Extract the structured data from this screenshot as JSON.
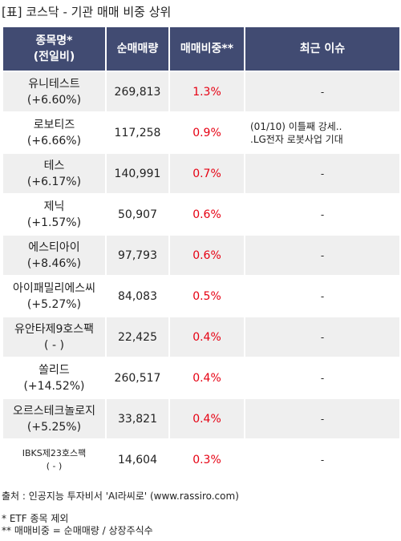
{
  "title": "[표] 코스닥 - 기관 매매 비중 상위",
  "headers": {
    "name_line1": "종목명*",
    "name_line2": "(전일비)",
    "net_volume": "순매매량",
    "ratio": "매매비중**",
    "issue": "최근 이슈"
  },
  "rows": [
    {
      "name": "유니테스트",
      "change": "(+6.60%)",
      "volume": "269,813",
      "ratio": "1.3%",
      "issue_line1": "-",
      "issue_line2": ""
    },
    {
      "name": "로보티즈",
      "change": "(+6.66%)",
      "volume": "117,258",
      "ratio": "0.9%",
      "issue_line1": "(01/10) 이틀째 강세..",
      "issue_line2": ".LG전자 로봇사업 기대"
    },
    {
      "name": "테스",
      "change": "(+6.17%)",
      "volume": "140,991",
      "ratio": "0.7%",
      "issue_line1": "-",
      "issue_line2": ""
    },
    {
      "name": "제닉",
      "change": "(+1.57%)",
      "volume": "50,907",
      "ratio": "0.6%",
      "issue_line1": "-",
      "issue_line2": ""
    },
    {
      "name": "에스티아이",
      "change": "(+8.46%)",
      "volume": "97,793",
      "ratio": "0.6%",
      "issue_line1": "-",
      "issue_line2": ""
    },
    {
      "name": "아이패밀리에스씨",
      "change": "(+5.27%)",
      "volume": "84,083",
      "ratio": "0.5%",
      "issue_line1": "-",
      "issue_line2": ""
    },
    {
      "name": "유안타제9호스팩",
      "change": "( - )",
      "volume": "22,425",
      "ratio": "0.4%",
      "issue_line1": "-",
      "issue_line2": ""
    },
    {
      "name": "쏠리드",
      "change": "(+14.52%)",
      "volume": "260,517",
      "ratio": "0.4%",
      "issue_line1": "-",
      "issue_line2": ""
    },
    {
      "name": "오르스테크놀로지",
      "change": "(+5.25%)",
      "volume": "33,821",
      "ratio": "0.4%",
      "issue_line1": "-",
      "issue_line2": ""
    },
    {
      "name": "IBKS제23호스팩",
      "change": "( - )",
      "volume": "14,604",
      "ratio": "0.3%",
      "issue_line1": "-",
      "issue_line2": ""
    }
  ],
  "footer": {
    "source": "출처 : 인공지능 투자비서 'AI라씨로' (www.rassiro.com)",
    "note1": "* ETF 종목 제외",
    "note2": "** 매매비중 = 순매매량 / 상장주식수"
  },
  "colors": {
    "header_bg": "#414b72",
    "ratio_text": "#e60012",
    "row_alt_bg": "#efefef"
  }
}
